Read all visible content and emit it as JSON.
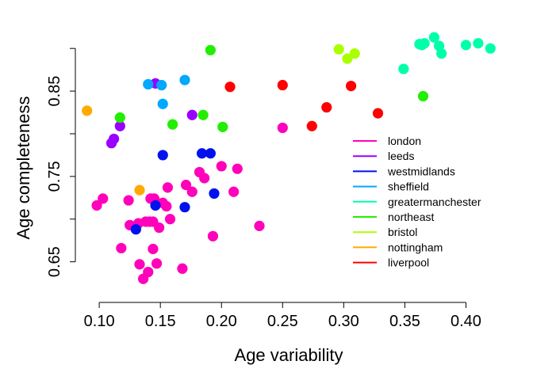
{
  "chart_data": {
    "type": "scatter",
    "xlabel": "Age variability",
    "ylabel": "Age completeness",
    "xlim": [
      0.085,
      0.425
    ],
    "ylim": [
      0.62,
      0.915
    ],
    "x_ticks": [
      0.1,
      0.15,
      0.2,
      0.25,
      0.3,
      0.35,
      0.4
    ],
    "x_tick_labels": [
      "0.10",
      "0.15",
      "0.20",
      "0.25",
      "0.30",
      "0.35",
      "0.40"
    ],
    "y_ticks": [
      0.65,
      0.7,
      0.75,
      0.8,
      0.85,
      0.9
    ],
    "y_tick_labels": [
      "0.65",
      "",
      "0.75",
      "",
      "0.85",
      ""
    ],
    "legend_position": "right",
    "legend": [
      {
        "label": "london",
        "color": "#ff00bb"
      },
      {
        "label": "leeds",
        "color": "#9900ff"
      },
      {
        "label": "westmidlands",
        "color": "#0011ee"
      },
      {
        "label": "sheffield",
        "color": "#00a8ff"
      },
      {
        "label": "greatermanchester",
        "color": "#00ffaa"
      },
      {
        "label": "northeast",
        "color": "#22ee00"
      },
      {
        "label": "bristol",
        "color": "#aaff00"
      },
      {
        "label": "nottingham",
        "color": "#ffaa00"
      },
      {
        "label": "liverpool",
        "color": "#ff0000"
      }
    ],
    "series": [
      {
        "name": "london",
        "color": "#ff00bb",
        "points": [
          [
            0.098,
            0.716
          ],
          [
            0.103,
            0.724
          ],
          [
            0.118,
            0.666
          ],
          [
            0.124,
            0.722
          ],
          [
            0.125,
            0.693
          ],
          [
            0.132,
            0.695
          ],
          [
            0.133,
            0.647
          ],
          [
            0.136,
            0.63
          ],
          [
            0.138,
            0.697
          ],
          [
            0.14,
            0.638
          ],
          [
            0.141,
            0.697
          ],
          [
            0.142,
            0.724
          ],
          [
            0.144,
            0.697
          ],
          [
            0.144,
            0.665
          ],
          [
            0.145,
            0.724
          ],
          [
            0.147,
            0.648
          ],
          [
            0.149,
            0.69
          ],
          [
            0.152,
            0.719
          ],
          [
            0.155,
            0.715
          ],
          [
            0.156,
            0.737
          ],
          [
            0.158,
            0.7
          ],
          [
            0.168,
            0.642
          ],
          [
            0.171,
            0.74
          ],
          [
            0.176,
            0.732
          ],
          [
            0.182,
            0.755
          ],
          [
            0.186,
            0.748
          ],
          [
            0.193,
            0.68
          ],
          [
            0.2,
            0.762
          ],
          [
            0.21,
            0.732
          ],
          [
            0.213,
            0.759
          ],
          [
            0.231,
            0.692
          ],
          [
            0.25,
            0.807
          ]
        ]
      },
      {
        "name": "leeds",
        "color": "#9900ff",
        "points": [
          [
            0.11,
            0.789
          ],
          [
            0.112,
            0.794
          ],
          [
            0.117,
            0.809
          ],
          [
            0.146,
            0.859
          ],
          [
            0.176,
            0.822
          ]
        ]
      },
      {
        "name": "westmidlands",
        "color": "#0011ee",
        "points": [
          [
            0.13,
            0.688
          ],
          [
            0.146,
            0.716
          ],
          [
            0.152,
            0.775
          ],
          [
            0.17,
            0.714
          ],
          [
            0.184,
            0.777
          ],
          [
            0.191,
            0.777
          ],
          [
            0.194,
            0.73
          ]
        ]
      },
      {
        "name": "sheffield",
        "color": "#00a8ff",
        "points": [
          [
            0.14,
            0.858
          ],
          [
            0.151,
            0.857
          ],
          [
            0.152,
            0.835
          ],
          [
            0.17,
            0.863
          ]
        ]
      },
      {
        "name": "greatermanchester",
        "color": "#00ffaa",
        "points": [
          [
            0.349,
            0.876
          ],
          [
            0.362,
            0.905
          ],
          [
            0.364,
            0.904
          ],
          [
            0.366,
            0.906
          ],
          [
            0.374,
            0.913
          ],
          [
            0.378,
            0.903
          ],
          [
            0.38,
            0.894
          ],
          [
            0.4,
            0.904
          ],
          [
            0.41,
            0.906
          ],
          [
            0.42,
            0.9
          ]
        ]
      },
      {
        "name": "northeast",
        "color": "#22ee00",
        "points": [
          [
            0.117,
            0.819
          ],
          [
            0.16,
            0.811
          ],
          [
            0.185,
            0.822
          ],
          [
            0.191,
            0.898
          ],
          [
            0.201,
            0.808
          ],
          [
            0.365,
            0.844
          ]
        ]
      },
      {
        "name": "bristol",
        "color": "#aaff00",
        "points": [
          [
            0.296,
            0.899
          ],
          [
            0.303,
            0.888
          ],
          [
            0.309,
            0.894
          ]
        ]
      },
      {
        "name": "nottingham",
        "color": "#ffaa00",
        "points": [
          [
            0.09,
            0.827
          ],
          [
            0.133,
            0.734
          ]
        ]
      },
      {
        "name": "liverpool",
        "color": "#ff0000",
        "points": [
          [
            0.207,
            0.855
          ],
          [
            0.25,
            0.857
          ],
          [
            0.274,
            0.809
          ],
          [
            0.286,
            0.831
          ],
          [
            0.306,
            0.856
          ],
          [
            0.328,
            0.824
          ]
        ]
      }
    ]
  }
}
